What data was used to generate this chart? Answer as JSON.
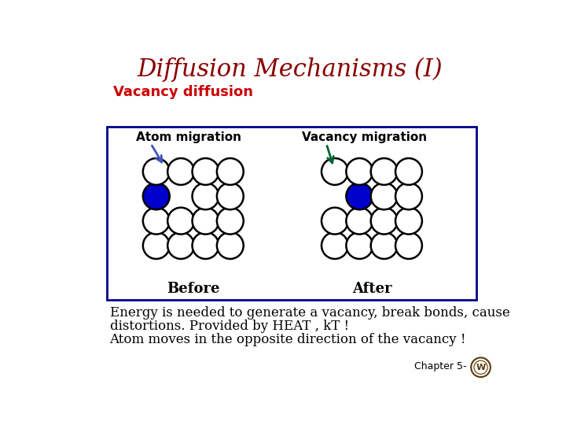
{
  "title": "Diffusion Mechanisms (I)",
  "title_color": "#8B0000",
  "title_fontsize": 22,
  "subtitle": "Vacancy diffusion",
  "subtitle_color": "#CC0000",
  "subtitle_fontsize": 13,
  "bg_color": "#FFFFFF",
  "box_color": "#00008B",
  "atom_color_normal": "#FFFFFF",
  "atom_edge_color": "#000000",
  "atom_blue_color": "#0000CC",
  "before_label": "Before",
  "after_label": "After",
  "atom_migration_label": "Atom migration",
  "vacancy_migration_label": "Vacancy migration",
  "body_text_line1": "Energy is needed to generate a vacancy, break bonds, cause",
  "body_text_line2": "distortions. Provided by HEAT , kT !",
  "body_text_line3": "Atom moves in the opposite direction of the vacancy !",
  "body_text_color": "#000000",
  "body_text_fontsize": 12,
  "chapter_text": "Chapter 5-",
  "chapter_fontsize": 9,
  "arrow_atom_color": "#4455BB",
  "arrow_vacancy_color": "#006633"
}
